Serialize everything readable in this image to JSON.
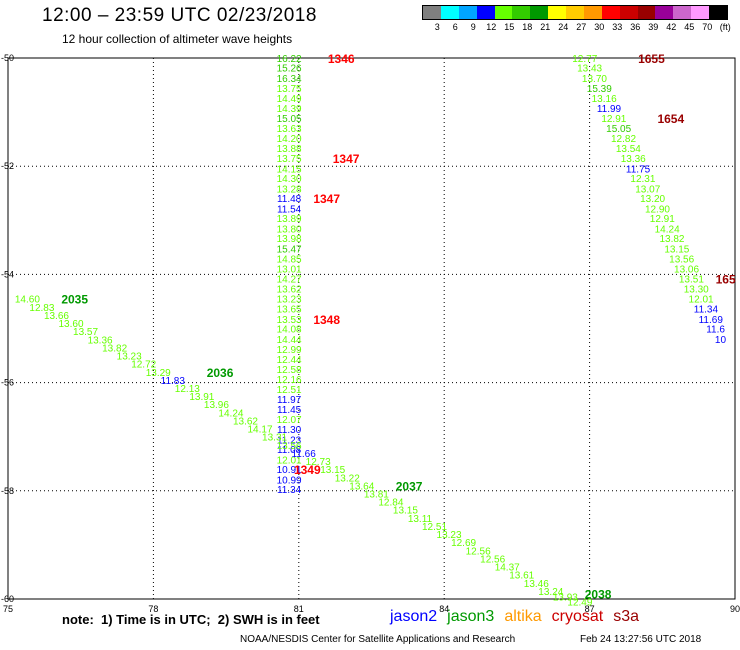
{
  "header": {
    "title": "12:00 – 23:59 UTC 02/23/2018",
    "subtitle": "12 hour collection of altimeter wave heights"
  },
  "colorbar": {
    "colors": [
      "#7f7f7f",
      "#00ffff",
      "#00a5ff",
      "#0000ff",
      "#66ff00",
      "#33cc00",
      "#009900",
      "#ffff00",
      "#ffcc00",
      "#ff9900",
      "#ff0000",
      "#cc0000",
      "#990000",
      "#990099",
      "#cc66cc",
      "#ff99ff",
      "#000000"
    ],
    "labels": [
      "3",
      "6",
      "9",
      "12",
      "15",
      "18",
      "21",
      "24",
      "27",
      "30",
      "33",
      "36",
      "39",
      "42",
      "45",
      "70",
      "(ft)"
    ]
  },
  "chart_data": {
    "type": "scatter",
    "xlim": [
      75,
      90
    ],
    "ylim": [
      -60,
      -50
    ],
    "xticks": [
      "75",
      "78",
      "81",
      "84",
      "87",
      "90"
    ],
    "yticks": [
      "-50",
      "-52",
      "-54",
      "-56",
      "-58",
      "-60"
    ],
    "grid": true,
    "series": [
      {
        "name": "jason3",
        "labels": [
          {
            "x": 80.8,
            "y": -50.0,
            "text": "16.22",
            "color": "#33cc00"
          },
          {
            "x": 80.8,
            "y": -50.18,
            "text": "15.26",
            "color": "#33cc00"
          },
          {
            "x": 80.8,
            "y": -50.37,
            "text": "16.34",
            "color": "#33cc00"
          },
          {
            "x": 80.8,
            "y": -50.55,
            "text": "13.75",
            "color": "#66ff00"
          },
          {
            "x": 80.8,
            "y": -50.74,
            "text": "14.49",
            "color": "#66ff00"
          },
          {
            "x": 80.8,
            "y": -50.92,
            "text": "14.39",
            "color": "#66ff00"
          },
          {
            "x": 80.8,
            "y": -51.11,
            "text": "15.05",
            "color": "#33cc00"
          },
          {
            "x": 80.8,
            "y": -51.29,
            "text": "13.63",
            "color": "#66ff00"
          },
          {
            "x": 80.8,
            "y": -51.48,
            "text": "14.20",
            "color": "#66ff00"
          },
          {
            "x": 80.8,
            "y": -51.66,
            "text": "13.88",
            "color": "#66ff00"
          },
          {
            "x": 80.8,
            "y": -51.85,
            "text": "13.75",
            "color": "#66ff00"
          },
          {
            "x": 80.8,
            "y": -52.04,
            "text": "14.15",
            "color": "#66ff00"
          },
          {
            "x": 80.8,
            "y": -52.22,
            "text": "14.30",
            "color": "#66ff00"
          },
          {
            "x": 80.8,
            "y": -52.41,
            "text": "13.28",
            "color": "#66ff00"
          },
          {
            "x": 80.8,
            "y": -52.59,
            "text": "11.48",
            "color": "#0000ff"
          },
          {
            "x": 80.8,
            "y": -52.78,
            "text": "11.54",
            "color": "#0000ff"
          },
          {
            "x": 80.8,
            "y": -52.96,
            "text": "13.89",
            "color": "#66ff00"
          },
          {
            "x": 80.8,
            "y": -53.15,
            "text": "13.80",
            "color": "#66ff00"
          },
          {
            "x": 80.8,
            "y": -53.33,
            "text": "13.98",
            "color": "#66ff00"
          },
          {
            "x": 80.8,
            "y": -53.52,
            "text": "15.47",
            "color": "#33cc00"
          },
          {
            "x": 80.8,
            "y": -53.71,
            "text": "14.85",
            "color": "#66ff00"
          },
          {
            "x": 80.8,
            "y": -53.89,
            "text": "13.01",
            "color": "#66ff00"
          },
          {
            "x": 80.8,
            "y": -54.08,
            "text": "14.27",
            "color": "#66ff00"
          },
          {
            "x": 80.8,
            "y": -54.26,
            "text": "13.62",
            "color": "#66ff00"
          },
          {
            "x": 80.8,
            "y": -54.45,
            "text": "13.23",
            "color": "#66ff00"
          },
          {
            "x": 80.8,
            "y": -54.63,
            "text": "13.65",
            "color": "#66ff00"
          },
          {
            "x": 80.8,
            "y": -54.82,
            "text": "13.53",
            "color": "#66ff00"
          },
          {
            "x": 80.8,
            "y": -55.0,
            "text": "14.08",
            "color": "#66ff00"
          },
          {
            "x": 80.8,
            "y": -55.19,
            "text": "14.44",
            "color": "#66ff00"
          },
          {
            "x": 80.8,
            "y": -55.38,
            "text": "12.99",
            "color": "#66ff00"
          },
          {
            "x": 80.8,
            "y": -55.56,
            "text": "12.44",
            "color": "#66ff00"
          },
          {
            "x": 80.8,
            "y": -55.75,
            "text": "12.58",
            "color": "#66ff00"
          },
          {
            "x": 80.8,
            "y": -55.93,
            "text": "12.16",
            "color": "#66ff00"
          },
          {
            "x": 80.8,
            "y": -56.12,
            "text": "12.51",
            "color": "#66ff00"
          },
          {
            "x": 80.8,
            "y": -56.3,
            "text": "11.97",
            "color": "#0000ff"
          },
          {
            "x": 80.8,
            "y": -56.49,
            "text": "11.45",
            "color": "#0000ff"
          },
          {
            "x": 80.8,
            "y": -56.67,
            "text": "12.07",
            "color": "#66ff00"
          },
          {
            "x": 80.8,
            "y": -56.86,
            "text": "11.30",
            "color": "#0000ff"
          },
          {
            "x": 80.8,
            "y": -57.05,
            "text": "11.23",
            "color": "#0000ff"
          },
          {
            "x": 80.8,
            "y": -57.23,
            "text": "11.08",
            "color": "#0000ff"
          },
          {
            "x": 80.8,
            "y": -57.42,
            "text": "12.01",
            "color": "#66ff00"
          },
          {
            "x": 80.8,
            "y": -57.6,
            "text": "10.91",
            "color": "#0000ff"
          },
          {
            "x": 80.8,
            "y": -57.79,
            "text": "10.99",
            "color": "#0000ff"
          },
          {
            "x": 80.8,
            "y": -57.97,
            "text": "11.34",
            "color": "#0000ff"
          }
        ]
      },
      {
        "name": "jason3",
        "labels": [
          {
            "x": 75.4,
            "y": -54.45,
            "text": "14.60",
            "color": "#66ff00"
          },
          {
            "x": 75.7,
            "y": -54.6,
            "text": "12.83",
            "color": "#66ff00"
          },
          {
            "x": 76.0,
            "y": -54.75,
            "text": "13.66",
            "color": "#66ff00"
          },
          {
            "x": 76.3,
            "y": -54.9,
            "text": "13.60",
            "color": "#66ff00"
          },
          {
            "x": 76.6,
            "y": -55.05,
            "text": "13.57",
            "color": "#66ff00"
          },
          {
            "x": 76.9,
            "y": -55.2,
            "text": "13.36",
            "color": "#66ff00"
          },
          {
            "x": 77.2,
            "y": -55.35,
            "text": "13.82",
            "color": "#66ff00"
          },
          {
            "x": 77.5,
            "y": -55.5,
            "text": "13.23",
            "color": "#66ff00"
          },
          {
            "x": 77.8,
            "y": -55.65,
            "text": "12.72",
            "color": "#66ff00"
          },
          {
            "x": 78.1,
            "y": -55.8,
            "text": "13.29",
            "color": "#66ff00"
          },
          {
            "x": 78.4,
            "y": -55.95,
            "text": "11.83",
            "color": "#0000ff"
          },
          {
            "x": 78.7,
            "y": -56.1,
            "text": "12.13",
            "color": "#66ff00"
          },
          {
            "x": 79.0,
            "y": -56.25,
            "text": "13.91",
            "color": "#66ff00"
          },
          {
            "x": 79.3,
            "y": -56.4,
            "text": "13.96",
            "color": "#66ff00"
          },
          {
            "x": 79.6,
            "y": -56.55,
            "text": "14.24",
            "color": "#66ff00"
          },
          {
            "x": 79.9,
            "y": -56.7,
            "text": "13.62",
            "color": "#66ff00"
          },
          {
            "x": 80.2,
            "y": -56.85,
            "text": "14.17",
            "color": "#66ff00"
          },
          {
            "x": 80.5,
            "y": -57.0,
            "text": "13.31",
            "color": "#66ff00"
          },
          {
            "x": 80.8,
            "y": -57.15,
            "text": "13.56",
            "color": "#66ff00"
          },
          {
            "x": 81.1,
            "y": -57.3,
            "text": "11.66",
            "color": "#0000ff"
          },
          {
            "x": 81.4,
            "y": -57.45,
            "text": "12.73",
            "color": "#66ff00"
          },
          {
            "x": 81.7,
            "y": -57.6,
            "text": "13.15",
            "color": "#66ff00"
          },
          {
            "x": 82.0,
            "y": -57.75,
            "text": "13.22",
            "color": "#66ff00"
          },
          {
            "x": 82.3,
            "y": -57.9,
            "text": "13.64",
            "color": "#66ff00"
          },
          {
            "x": 82.6,
            "y": -58.05,
            "text": "13.81",
            "color": "#66ff00"
          },
          {
            "x": 82.9,
            "y": -58.2,
            "text": "12.84",
            "color": "#66ff00"
          },
          {
            "x": 83.2,
            "y": -58.35,
            "text": "13.15",
            "color": "#66ff00"
          },
          {
            "x": 83.5,
            "y": -58.5,
            "text": "13.11",
            "color": "#66ff00"
          },
          {
            "x": 83.8,
            "y": -58.65,
            "text": "12.51",
            "color": "#66ff00"
          },
          {
            "x": 84.1,
            "y": -58.8,
            "text": "13.23",
            "color": "#66ff00"
          },
          {
            "x": 84.4,
            "y": -58.95,
            "text": "12.69",
            "color": "#66ff00"
          },
          {
            "x": 84.7,
            "y": -59.1,
            "text": "12.56",
            "color": "#66ff00"
          },
          {
            "x": 85.0,
            "y": -59.25,
            "text": "12.56",
            "color": "#66ff00"
          },
          {
            "x": 85.3,
            "y": -59.4,
            "text": "14.37",
            "color": "#66ff00"
          },
          {
            "x": 85.6,
            "y": -59.55,
            "text": "13.61",
            "color": "#66ff00"
          },
          {
            "x": 85.9,
            "y": -59.7,
            "text": "13.46",
            "color": "#66ff00"
          },
          {
            "x": 86.2,
            "y": -59.85,
            "text": "13.24",
            "color": "#66ff00"
          },
          {
            "x": 86.5,
            "y": -59.95,
            "text": "13.93",
            "color": "#66ff00"
          },
          {
            "x": 86.8,
            "y": -60.05,
            "text": "12.49",
            "color": "#66ff00"
          }
        ]
      },
      {
        "name": "jason3",
        "labels": [
          {
            "x": 86.9,
            "y": -50.0,
            "text": "12.77",
            "color": "#66ff00"
          },
          {
            "x": 87.0,
            "y": -50.18,
            "text": "13.43",
            "color": "#66ff00"
          },
          {
            "x": 87.1,
            "y": -50.37,
            "text": "13.70",
            "color": "#66ff00"
          },
          {
            "x": 87.2,
            "y": -50.55,
            "text": "15.39",
            "color": "#33cc00"
          },
          {
            "x": 87.3,
            "y": -50.74,
            "text": "13.16",
            "color": "#66ff00"
          },
          {
            "x": 87.4,
            "y": -50.92,
            "text": "11.99",
            "color": "#0000ff"
          },
          {
            "x": 87.5,
            "y": -51.11,
            "text": "12.91",
            "color": "#66ff00"
          },
          {
            "x": 87.6,
            "y": -51.29,
            "text": "15.05",
            "color": "#33cc00"
          },
          {
            "x": 87.7,
            "y": -51.48,
            "text": "12.82",
            "color": "#66ff00"
          },
          {
            "x": 87.8,
            "y": -51.66,
            "text": "13.54",
            "color": "#66ff00"
          },
          {
            "x": 87.9,
            "y": -51.85,
            "text": "13.36",
            "color": "#66ff00"
          },
          {
            "x": 88.0,
            "y": -52.04,
            "text": "11.75",
            "color": "#0000ff"
          },
          {
            "x": 88.1,
            "y": -52.22,
            "text": "12.31",
            "color": "#66ff00"
          },
          {
            "x": 88.2,
            "y": -52.41,
            "text": "13.07",
            "color": "#66ff00"
          },
          {
            "x": 88.3,
            "y": -52.59,
            "text": "13.20",
            "color": "#66ff00"
          },
          {
            "x": 88.4,
            "y": -52.78,
            "text": "12.90",
            "color": "#66ff00"
          },
          {
            "x": 88.5,
            "y": -52.96,
            "text": "12.91",
            "color": "#66ff00"
          },
          {
            "x": 88.6,
            "y": -53.15,
            "text": "14.24",
            "color": "#66ff00"
          },
          {
            "x": 88.7,
            "y": -53.33,
            "text": "13.82",
            "color": "#66ff00"
          },
          {
            "x": 88.8,
            "y": -53.52,
            "text": "13.15",
            "color": "#66ff00"
          },
          {
            "x": 88.9,
            "y": -53.71,
            "text": "13.56",
            "color": "#66ff00"
          },
          {
            "x": 89.0,
            "y": -53.89,
            "text": "13.06",
            "color": "#66ff00"
          },
          {
            "x": 89.1,
            "y": -54.08,
            "text": "13.51",
            "color": "#66ff00"
          },
          {
            "x": 89.2,
            "y": -54.26,
            "text": "13.30",
            "color": "#66ff00"
          },
          {
            "x": 89.3,
            "y": -54.45,
            "text": "12.01",
            "color": "#66ff00"
          },
          {
            "x": 89.4,
            "y": -54.63,
            "text": "11.34",
            "color": "#0000ff"
          },
          {
            "x": 89.5,
            "y": -54.82,
            "text": "11.69",
            "color": "#0000ff"
          },
          {
            "x": 89.6,
            "y": -55.0,
            "text": "11.6",
            "color": "#0000ff"
          },
          {
            "x": 89.7,
            "y": -55.19,
            "text": "10",
            "color": "#0000ff"
          }
        ]
      }
    ],
    "annotations": [
      {
        "x": 81.6,
        "y": -50.0,
        "text": "1346",
        "color": "#ff0000"
      },
      {
        "x": 81.7,
        "y": -51.85,
        "text": "1347",
        "color": "#ff0000"
      },
      {
        "x": 81.3,
        "y": -52.59,
        "text": "1347",
        "color": "#ff0000"
      },
      {
        "x": 81.3,
        "y": -54.82,
        "text": "1348",
        "color": "#ff0000"
      },
      {
        "x": 80.9,
        "y": -57.6,
        "text": "1349",
        "color": "#ff0000"
      },
      {
        "x": 76.1,
        "y": -54.45,
        "text": "2035",
        "color": "#009900"
      },
      {
        "x": 79.1,
        "y": -55.8,
        "text": "2036",
        "color": "#009900"
      },
      {
        "x": 83.0,
        "y": -57.9,
        "text": "2037",
        "color": "#009900"
      },
      {
        "x": 86.9,
        "y": -59.9,
        "text": "2038",
        "color": "#009900"
      },
      {
        "x": 88.0,
        "y": -50.0,
        "text": "1655",
        "color": "#990000"
      },
      {
        "x": 88.4,
        "y": -51.11,
        "text": "1654",
        "color": "#990000"
      },
      {
        "x": 89.6,
        "y": -54.08,
        "text": "165",
        "color": "#990000"
      }
    ]
  },
  "footer": {
    "note": "note:  1) Time is in UTC;  2) SWH is in feet",
    "satellites": [
      {
        "name": "jason2",
        "color": "#0000ff"
      },
      {
        "name": "jason3",
        "color": "#009900"
      },
      {
        "name": "altika",
        "color": "#ff9900"
      },
      {
        "name": "cryosat",
        "color": "#cc0000"
      },
      {
        "name": "s3a",
        "color": "#990000"
      }
    ],
    "credit": "NOAA/NESDIS Center for Satellite Applications and Research",
    "timestamp": "Feb 24 13:27:56 UTC 2018"
  }
}
